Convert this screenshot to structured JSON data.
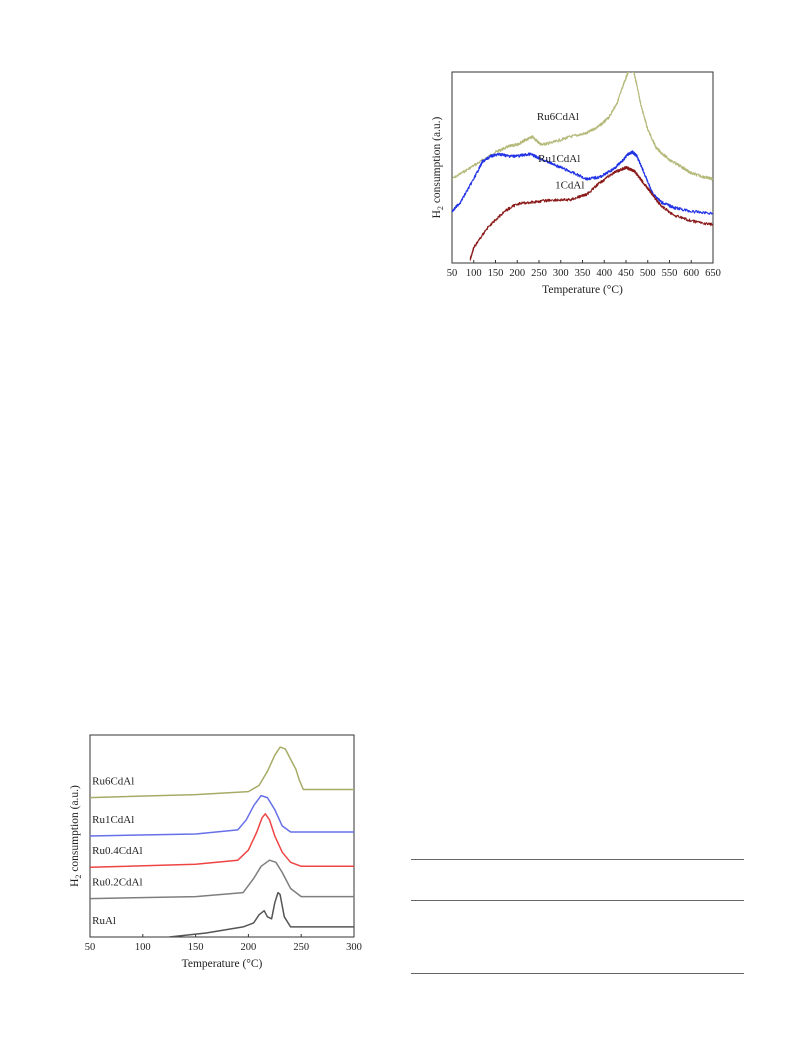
{
  "chart_data": [
    {
      "type": "line",
      "xlabel": "Temperature (°C)",
      "ylabel_main": "H",
      "ylabel_sub": "2",
      "ylabel_rest": " consumption (a.u.)",
      "xlim": [
        50,
        650
      ],
      "xticks": [
        50,
        100,
        150,
        200,
        250,
        300,
        350,
        400,
        450,
        500,
        550,
        600,
        650
      ],
      "ylim": [
        0,
        1
      ],
      "series": [
        {
          "name": "Ru6CdAl",
          "color": "#b4b878",
          "x": [
            50,
            100,
            150,
            180,
            200,
            215,
            235,
            255,
            280,
            320,
            360,
            390,
            410,
            430,
            445,
            455,
            462,
            468,
            475,
            485,
            500,
            520,
            550,
            580,
            600,
            630,
            650
          ],
          "y": [
            0.44,
            0.51,
            0.58,
            0.61,
            0.62,
            0.64,
            0.66,
            0.62,
            0.63,
            0.66,
            0.68,
            0.72,
            0.76,
            0.84,
            0.94,
            1.0,
            1.02,
            1.0,
            0.93,
            0.82,
            0.7,
            0.6,
            0.54,
            0.5,
            0.47,
            0.45,
            0.44
          ]
        },
        {
          "name": "Ru1CdAl",
          "color": "#2233e6",
          "x": [
            50,
            70,
            100,
            120,
            140,
            160,
            180,
            200,
            230,
            250,
            280,
            320,
            360,
            390,
            420,
            440,
            455,
            465,
            475,
            490,
            510,
            530,
            560,
            600,
            650
          ],
          "y": [
            0.27,
            0.32,
            0.44,
            0.53,
            0.56,
            0.57,
            0.56,
            0.56,
            0.57,
            0.55,
            0.52,
            0.48,
            0.44,
            0.45,
            0.49,
            0.53,
            0.57,
            0.58,
            0.56,
            0.48,
            0.37,
            0.32,
            0.29,
            0.27,
            0.26
          ]
        },
        {
          "name": "1CdAl",
          "color": "#8b1a1a",
          "x": [
            92,
            100,
            130,
            170,
            200,
            240,
            280,
            320,
            360,
            390,
            420,
            440,
            450,
            460,
            470,
            480,
            490,
            510,
            530,
            560,
            600,
            650
          ],
          "y": [
            0.02,
            0.08,
            0.18,
            0.27,
            0.31,
            0.32,
            0.33,
            0.33,
            0.36,
            0.42,
            0.47,
            0.49,
            0.5,
            0.49,
            0.48,
            0.45,
            0.42,
            0.36,
            0.3,
            0.25,
            0.22,
            0.2
          ]
        }
      ],
      "labels": [
        {
          "text": "Ru6CdAl",
          "x": 245,
          "y": 0.75
        },
        {
          "text": "Ru1CdAl",
          "x": 248,
          "y": 0.53
        },
        {
          "text": "1CdAl",
          "x": 287,
          "y": 0.39
        }
      ]
    },
    {
      "type": "line",
      "xlabel": "Temperature (°C)",
      "ylabel_main": "H",
      "ylabel_sub": "2",
      "ylabel_rest": " consumption (a.u.)",
      "xlim": [
        50,
        300
      ],
      "xticks": [
        50,
        100,
        150,
        200,
        250,
        300
      ],
      "ylim": [
        0,
        1
      ],
      "series": [
        {
          "name": "Ru6CdAl",
          "color": "#a7ab66",
          "x": [
            50,
            150,
            200,
            210,
            218,
            225,
            230,
            235,
            240,
            245,
            248,
            252,
            300
          ],
          "y": [
            0.69,
            0.705,
            0.72,
            0.75,
            0.82,
            0.9,
            0.94,
            0.93,
            0.88,
            0.83,
            0.78,
            0.73,
            0.73
          ]
        },
        {
          "name": "Ru1CdAl",
          "color": "#6670e8",
          "x": [
            50,
            150,
            190,
            198,
            205,
            212,
            218,
            225,
            232,
            240,
            300
          ],
          "y": [
            0.5,
            0.51,
            0.53,
            0.58,
            0.65,
            0.7,
            0.69,
            0.63,
            0.55,
            0.52,
            0.52
          ]
        },
        {
          "name": "Ru0.4CdAl",
          "color": "#ee4444",
          "x": [
            50,
            150,
            190,
            200,
            208,
            213,
            216,
            220,
            225,
            232,
            240,
            250,
            300
          ],
          "y": [
            0.345,
            0.36,
            0.38,
            0.43,
            0.52,
            0.59,
            0.61,
            0.58,
            0.5,
            0.42,
            0.37,
            0.35,
            0.35
          ]
        },
        {
          "name": "Ru0.2CdAl",
          "color": "#7e7e7e",
          "x": [
            50,
            150,
            195,
            205,
            212,
            220,
            226,
            232,
            240,
            250,
            300
          ],
          "y": [
            0.19,
            0.2,
            0.22,
            0.29,
            0.35,
            0.38,
            0.37,
            0.32,
            0.24,
            0.2,
            0.2
          ]
        },
        {
          "name": "RuAl",
          "color": "#555555",
          "x": [
            125,
            160,
            195,
            205,
            210,
            215,
            218,
            222,
            225,
            228,
            230,
            234,
            240,
            300
          ],
          "y": [
            0.0,
            0.02,
            0.05,
            0.07,
            0.11,
            0.13,
            0.1,
            0.09,
            0.17,
            0.22,
            0.21,
            0.1,
            0.05,
            0.05
          ]
        }
      ],
      "labels": [
        {
          "text": "Ru6CdAl",
          "x": 52,
          "y": 0.755
        },
        {
          "text": "Ru1CdAl",
          "x": 52,
          "y": 0.565
        },
        {
          "text": "Ru0.4CdAl",
          "x": 52,
          "y": 0.41
        },
        {
          "text": "Ru0.2CdAl",
          "x": 52,
          "y": 0.255
        },
        {
          "text": "RuAl",
          "x": 52,
          "y": 0.065
        }
      ]
    }
  ]
}
